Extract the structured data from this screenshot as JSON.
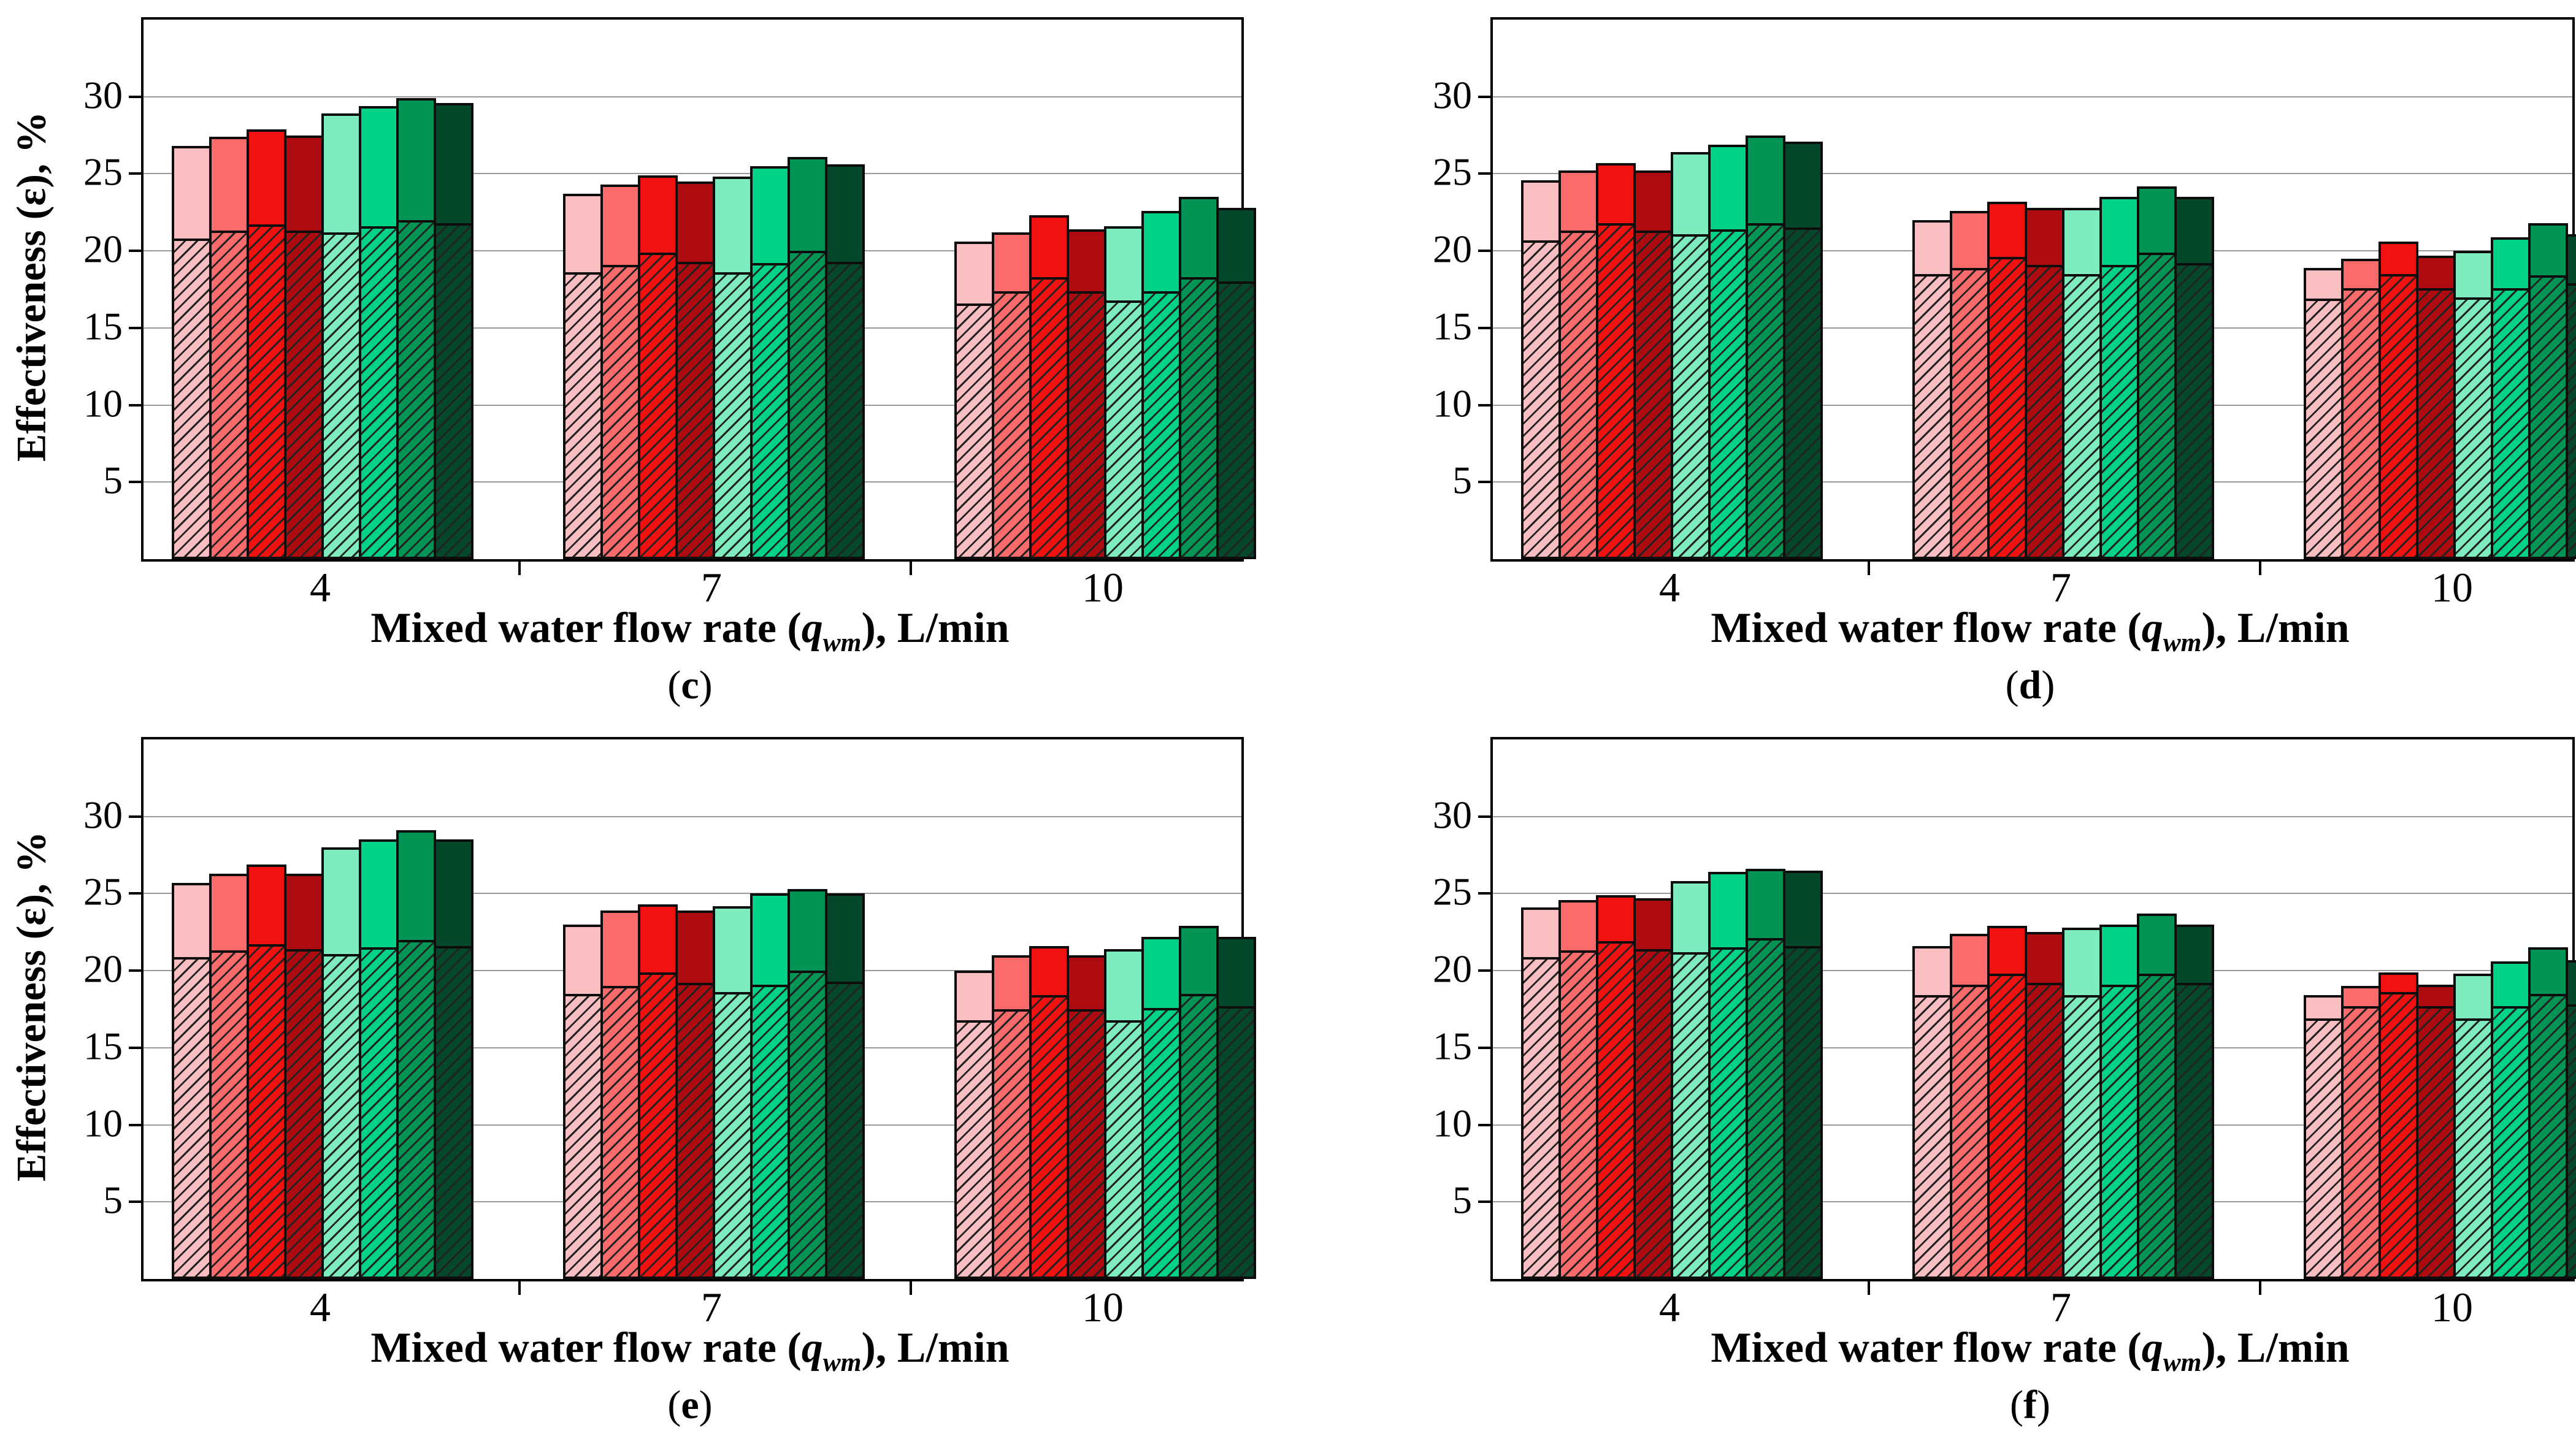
{
  "figure": {
    "background": "#FFFFFF",
    "axis_color": "#000000",
    "gridline_color": "#9A9A9A",
    "hatch_line_color": "#222222",
    "y_axis_label": "Effectiveness (ε), %",
    "x_axis_label": {
      "prefix": "Mixed water flow rate (",
      "variable": "q",
      "subscript": "wm",
      "suffix": "), L/min"
    },
    "ytick_labels": [
      "5",
      "10",
      "15",
      "20",
      "25",
      "30"
    ],
    "xtick_labels": [
      "4",
      "7",
      "10"
    ],
    "bar_colors": [
      "#F9BEC1",
      "#FB6B6B",
      "#F01111",
      "#AE0B10",
      "#7EECBE",
      "#00D287",
      "#029455",
      "#03482A"
    ],
    "series_names": [
      "red-shade-lightest",
      "red-shade-light",
      "red-shade-bright",
      "red-shade-dark",
      "green-shade-lightest",
      "green-shade-light",
      "green-shade-medium",
      "green-shade-dark"
    ]
  },
  "chart_data": [
    {
      "type": "bar",
      "caption": "(c)",
      "caption_letter": "c",
      "show_ylabel": true,
      "title": "",
      "xlabel": "Mixed water flow rate (qwm), L/min",
      "ylabel": "Effectiveness (ε), %",
      "categories": [
        "4",
        "7",
        "10"
      ],
      "ylim": [
        0,
        35
      ],
      "yticks": [
        5,
        10,
        15,
        20,
        25,
        30
      ],
      "grid": true,
      "legend": "none",
      "series": [
        {
          "name": "red-shade-lightest",
          "color": "#F9BEC1",
          "totals": [
            26.8,
            23.7,
            20.6
          ],
          "hatched": [
            20.8,
            18.6,
            16.6
          ]
        },
        {
          "name": "red-shade-light",
          "color": "#FB6B6B",
          "totals": [
            27.4,
            24.3,
            21.2
          ],
          "hatched": [
            21.3,
            19.1,
            17.4
          ]
        },
        {
          "name": "red-shade-bright",
          "color": "#F01111",
          "totals": [
            27.9,
            24.9,
            22.3
          ],
          "hatched": [
            21.7,
            19.9,
            18.3
          ]
        },
        {
          "name": "red-shade-dark",
          "color": "#AE0B10",
          "totals": [
            27.5,
            24.5,
            21.4
          ],
          "hatched": [
            21.3,
            19.3,
            17.4
          ]
        },
        {
          "name": "green-shade-lightest",
          "color": "#7EECBE",
          "totals": [
            28.9,
            24.8,
            21.6
          ],
          "hatched": [
            21.2,
            18.6,
            16.8
          ]
        },
        {
          "name": "green-shade-light",
          "color": "#00D287",
          "totals": [
            29.4,
            25.5,
            22.6
          ],
          "hatched": [
            21.6,
            19.2,
            17.4
          ]
        },
        {
          "name": "green-shade-medium",
          "color": "#029455",
          "totals": [
            29.9,
            26.1,
            23.5
          ],
          "hatched": [
            22.0,
            20.0,
            18.3
          ]
        },
        {
          "name": "green-shade-dark",
          "color": "#03482A",
          "totals": [
            29.6,
            25.6,
            22.8
          ],
          "hatched": [
            21.8,
            19.3,
            18.0
          ]
        }
      ]
    },
    {
      "type": "bar",
      "caption": "(d)",
      "caption_letter": "d",
      "show_ylabel": false,
      "title": "",
      "xlabel": "Mixed water flow rate (qwm), L/min",
      "ylabel": "Effectiveness (ε), %",
      "categories": [
        "4",
        "7",
        "10"
      ],
      "ylim": [
        0,
        35
      ],
      "yticks": [
        5,
        10,
        15,
        20,
        25,
        30
      ],
      "grid": true,
      "legend": "none",
      "series": [
        {
          "name": "red-shade-lightest",
          "color": "#F9BEC1",
          "totals": [
            24.6,
            22.0,
            18.9
          ],
          "hatched": [
            20.7,
            18.5,
            16.9
          ]
        },
        {
          "name": "red-shade-light",
          "color": "#FB6B6B",
          "totals": [
            25.2,
            22.6,
            19.5
          ],
          "hatched": [
            21.3,
            18.9,
            17.6
          ]
        },
        {
          "name": "red-shade-bright",
          "color": "#F01111",
          "totals": [
            25.7,
            23.2,
            20.6
          ],
          "hatched": [
            21.8,
            19.6,
            18.5
          ]
        },
        {
          "name": "red-shade-dark",
          "color": "#AE0B10",
          "totals": [
            25.2,
            22.8,
            19.7
          ],
          "hatched": [
            21.3,
            19.1,
            17.6
          ]
        },
        {
          "name": "green-shade-lightest",
          "color": "#7EECBE",
          "totals": [
            26.4,
            22.8,
            20.0
          ],
          "hatched": [
            21.1,
            18.5,
            17.0
          ]
        },
        {
          "name": "green-shade-light",
          "color": "#00D287",
          "totals": [
            26.9,
            23.5,
            20.9
          ],
          "hatched": [
            21.4,
            19.1,
            17.6
          ]
        },
        {
          "name": "green-shade-medium",
          "color": "#029455",
          "totals": [
            27.5,
            24.2,
            21.8
          ],
          "hatched": [
            21.8,
            19.9,
            18.4
          ]
        },
        {
          "name": "green-shade-dark",
          "color": "#03482A",
          "totals": [
            27.1,
            23.5,
            21.1
          ],
          "hatched": [
            21.5,
            19.2,
            17.9
          ]
        }
      ]
    },
    {
      "type": "bar",
      "caption": "(e)",
      "caption_letter": "e",
      "show_ylabel": true,
      "title": "",
      "xlabel": "Mixed water flow rate (qwm), L/min",
      "ylabel": "Effectiveness (ε), %",
      "categories": [
        "4",
        "7",
        "10"
      ],
      "ylim": [
        0,
        35
      ],
      "yticks": [
        5,
        10,
        15,
        20,
        25,
        30
      ],
      "grid": true,
      "legend": "none",
      "series": [
        {
          "name": "red-shade-lightest",
          "color": "#F9BEC1",
          "totals": [
            25.7,
            23.0,
            20.0
          ],
          "hatched": [
            20.9,
            18.5,
            16.8
          ]
        },
        {
          "name": "red-shade-light",
          "color": "#FB6B6B",
          "totals": [
            26.3,
            23.9,
            21.0
          ],
          "hatched": [
            21.3,
            19.0,
            17.5
          ]
        },
        {
          "name": "red-shade-bright",
          "color": "#F01111",
          "totals": [
            26.9,
            24.3,
            21.6
          ],
          "hatched": [
            21.7,
            19.9,
            18.4
          ]
        },
        {
          "name": "red-shade-dark",
          "color": "#AE0B10",
          "totals": [
            26.3,
            23.9,
            21.0
          ],
          "hatched": [
            21.4,
            19.2,
            17.5
          ]
        },
        {
          "name": "green-shade-lightest",
          "color": "#7EECBE",
          "totals": [
            28.0,
            24.2,
            21.4
          ],
          "hatched": [
            21.1,
            18.6,
            16.8
          ]
        },
        {
          "name": "green-shade-light",
          "color": "#00D287",
          "totals": [
            28.5,
            25.0,
            22.2
          ],
          "hatched": [
            21.5,
            19.1,
            17.6
          ]
        },
        {
          "name": "green-shade-medium",
          "color": "#029455",
          "totals": [
            29.1,
            25.3,
            22.9
          ],
          "hatched": [
            22.0,
            20.0,
            18.5
          ]
        },
        {
          "name": "green-shade-dark",
          "color": "#03482A",
          "totals": [
            28.5,
            25.0,
            22.2
          ],
          "hatched": [
            21.6,
            19.3,
            17.7
          ]
        }
      ]
    },
    {
      "type": "bar",
      "caption": "(f)",
      "caption_letter": "f",
      "show_ylabel": false,
      "title": "",
      "xlabel": "Mixed water flow rate (qwm), L/min",
      "ylabel": "Effectiveness (ε), %",
      "categories": [
        "4",
        "7",
        "10"
      ],
      "ylim": [
        0,
        35
      ],
      "yticks": [
        5,
        10,
        15,
        20,
        25,
        30
      ],
      "grid": true,
      "legend": "none",
      "series": [
        {
          "name": "red-shade-lightest",
          "color": "#F9BEC1",
          "totals": [
            24.1,
            21.6,
            18.4
          ],
          "hatched": [
            20.9,
            18.4,
            16.9
          ]
        },
        {
          "name": "red-shade-light",
          "color": "#FB6B6B",
          "totals": [
            24.6,
            22.4,
            19.0
          ],
          "hatched": [
            21.3,
            19.1,
            17.7
          ]
        },
        {
          "name": "red-shade-bright",
          "color": "#F01111",
          "totals": [
            24.9,
            22.9,
            19.9
          ],
          "hatched": [
            21.9,
            19.8,
            18.6
          ]
        },
        {
          "name": "red-shade-dark",
          "color": "#AE0B10",
          "totals": [
            24.7,
            22.5,
            19.1
          ],
          "hatched": [
            21.4,
            19.2,
            17.7
          ]
        },
        {
          "name": "green-shade-lightest",
          "color": "#7EECBE",
          "totals": [
            25.8,
            22.8,
            19.8
          ],
          "hatched": [
            21.2,
            18.4,
            16.9
          ]
        },
        {
          "name": "green-shade-light",
          "color": "#00D287",
          "totals": [
            26.4,
            23.0,
            20.6
          ],
          "hatched": [
            21.5,
            19.1,
            17.7
          ]
        },
        {
          "name": "green-shade-medium",
          "color": "#029455",
          "totals": [
            26.6,
            23.7,
            21.5
          ],
          "hatched": [
            22.1,
            19.8,
            18.5
          ]
        },
        {
          "name": "green-shade-dark",
          "color": "#03482A",
          "totals": [
            26.5,
            23.0,
            20.7
          ],
          "hatched": [
            21.6,
            19.2,
            17.8
          ]
        }
      ]
    }
  ]
}
